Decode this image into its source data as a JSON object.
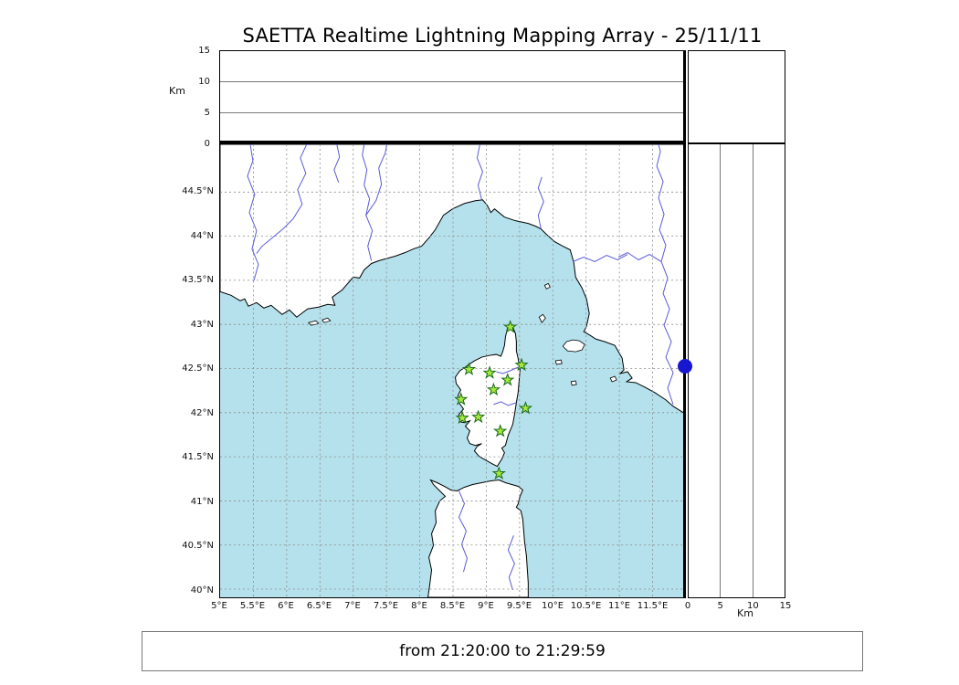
{
  "title": "SAETTA Realtime Lightning Mapping Array - 25/11/11",
  "footer": {
    "text": "from 21:20:00 to 21:29:59"
  },
  "axes": {
    "altitude_left": {
      "unit": "Km",
      "ticks": [
        "15",
        "10",
        "5",
        "0"
      ]
    },
    "altitude_right": {
      "unit": "Km",
      "ticks": [
        "0",
        "5",
        "10",
        "15"
      ]
    },
    "lat_ticks": [
      "44.5°N",
      "44°N",
      "43.5°N",
      "43°N",
      "42.5°N",
      "42°N",
      "41.5°N",
      "41°N",
      "40.5°N",
      "40°N"
    ],
    "lon_ticks": [
      "5°E",
      "5.5°E",
      "6°E",
      "6.5°E",
      "7°E",
      "7.5°E",
      "8°E",
      "8.5°E",
      "9°E",
      "9.5°E",
      "10°E",
      "10.5°E",
      "11°E",
      "11.5°E"
    ],
    "altitude_range_km": [
      0,
      15
    ],
    "lon_range": [
      5,
      12
    ],
    "lat_range": [
      40,
      45
    ]
  },
  "map": {
    "sea_color": "#b5e1ec",
    "land_color": "#ffffff",
    "coast_color": "#000000",
    "river_color": "#5b5bd6",
    "grid_color": "#8a8a8a",
    "station_color": "#a6e93c",
    "station_edge_color": "#156a15",
    "stations": [
      {
        "lon": 9.36,
        "lat": 42.97
      },
      {
        "lon": 9.53,
        "lat": 42.54
      },
      {
        "lon": 8.74,
        "lat": 42.49
      },
      {
        "lon": 9.05,
        "lat": 42.45
      },
      {
        "lon": 9.32,
        "lat": 42.37
      },
      {
        "lon": 9.11,
        "lat": 42.26
      },
      {
        "lon": 8.62,
        "lat": 42.15
      },
      {
        "lon": 9.59,
        "lat": 42.05
      },
      {
        "lon": 8.88,
        "lat": 41.95
      },
      {
        "lon": 8.64,
        "lat": 41.94
      },
      {
        "lon": 9.21,
        "lat": 41.79
      },
      {
        "lon": 9.19,
        "lat": 41.31
      }
    ],
    "event_marker": {
      "lat": 42.53,
      "altitude_km": 0,
      "color": "#1717cf"
    }
  }
}
